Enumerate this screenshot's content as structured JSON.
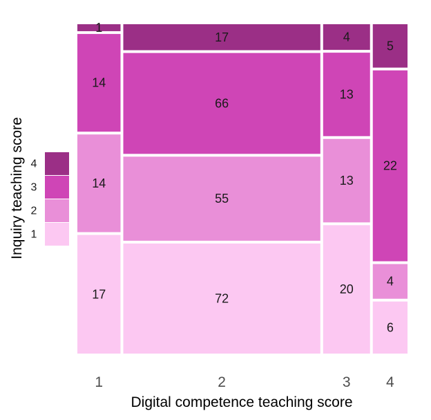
{
  "chart_data": {
    "type": "mosaic",
    "xlabel": "Digital competence teaching score",
    "ylabel": "Inquiry teaching score",
    "x_categories": [
      "1",
      "2",
      "3",
      "4"
    ],
    "y_categories": [
      "1",
      "2",
      "3",
      "4"
    ],
    "counts": {
      "1": {
        "1": 17,
        "2": 14,
        "3": 14,
        "4": 1
      },
      "2": {
        "1": 72,
        "2": 55,
        "3": 66,
        "4": 17
      },
      "3": {
        "1": 20,
        "2": 13,
        "3": 13,
        "4": 4
      },
      "4": {
        "1": 6,
        "2": 4,
        "3": 22,
        "4": 5
      }
    },
    "legend": {
      "position": "left",
      "entries": [
        {
          "label": "4",
          "color": "#9b2f86"
        },
        {
          "label": "3",
          "color": "#cf45b6"
        },
        {
          "label": "2",
          "color": "#e98fd8"
        },
        {
          "label": "1",
          "color": "#fcc8f2"
        }
      ]
    },
    "colors": {
      "1": "#fcc8f2",
      "2": "#e98fd8",
      "3": "#cf45b6",
      "4": "#9b2f86"
    },
    "background": "#ffffff",
    "grid": false
  }
}
